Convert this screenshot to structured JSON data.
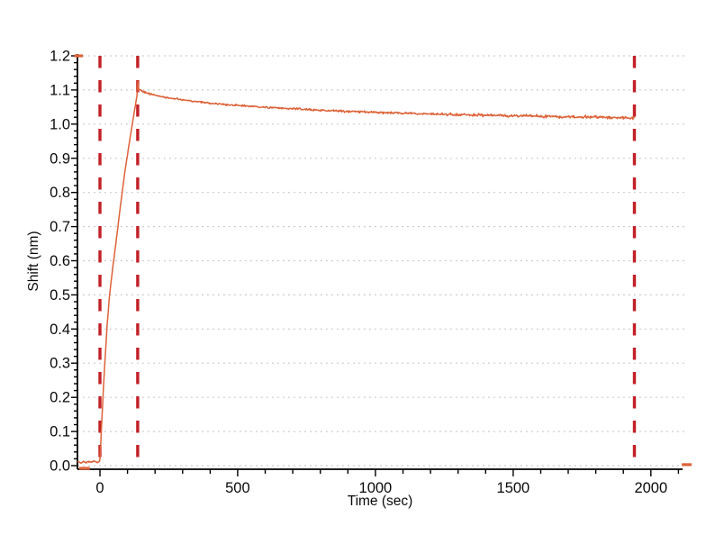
{
  "chart_data": {
    "type": "line",
    "title": "",
    "xlabel": "Time (sec)",
    "ylabel": "Shift (nm)",
    "xlim": [
      -81.7,
      2115
    ],
    "ylim": [
      0,
      1.2
    ],
    "x_major_ticks": [
      0,
      500,
      1000,
      1500,
      2000
    ],
    "x_tick_labels": [
      "0",
      "500",
      "1000",
      "1500",
      "2000"
    ],
    "x_minor_step": 100,
    "y_major_ticks": [
      0.0,
      0.1,
      0.2,
      0.3,
      0.4,
      0.5,
      0.6,
      0.7,
      0.8,
      0.9,
      1.0,
      1.1,
      1.2
    ],
    "y_tick_labels": [
      "0.0",
      "0.1",
      "0.2",
      "0.3",
      "0.4",
      "0.5",
      "0.6",
      "0.7",
      "0.8",
      "0.9",
      "1.0",
      "1.1",
      "1.2"
    ],
    "y_minor_step": 0.02,
    "grid": "horizontal-dotted",
    "legend": "none",
    "colors": {
      "trace": "#dd6238",
      "event_line": "#c22027",
      "grid": "#c6c6c6",
      "axis": "#000000",
      "text": "#0a0a0a",
      "background": "#ffffff"
    },
    "event_lines_x": [
      0,
      137,
      1940
    ],
    "series": [
      {
        "name": "sensorgram-trace",
        "color": "#dd6238",
        "noise_amplitude_base": 0.0028,
        "noise_amplitude_end": 0.0065,
        "points": [
          [
            -80,
            0.012
          ],
          [
            -70,
            0.008
          ],
          [
            -60,
            0.013
          ],
          [
            -50,
            0.009
          ],
          [
            -40,
            0.012
          ],
          [
            -30,
            0.01
          ],
          [
            -20,
            0.013
          ],
          [
            -10,
            0.009
          ],
          [
            -2,
            0.012
          ],
          [
            0,
            0.02
          ],
          [
            5,
            0.1
          ],
          [
            12,
            0.22
          ],
          [
            20,
            0.33
          ],
          [
            26,
            0.41
          ],
          [
            35,
            0.5
          ],
          [
            45,
            0.57
          ],
          [
            60,
            0.665
          ],
          [
            75,
            0.765
          ],
          [
            90,
            0.858
          ],
          [
            105,
            0.937
          ],
          [
            118,
            1.002
          ],
          [
            128,
            1.052
          ],
          [
            134,
            1.082
          ],
          [
            136,
            1.098
          ],
          [
            137.5,
            1.125
          ],
          [
            140,
            1.103
          ],
          [
            150,
            1.098
          ],
          [
            165,
            1.093
          ],
          [
            185,
            1.088
          ],
          [
            210,
            1.083
          ],
          [
            240,
            1.078
          ],
          [
            270,
            1.074
          ],
          [
            300,
            1.071
          ],
          [
            340,
            1.067
          ],
          [
            380,
            1.063
          ],
          [
            420,
            1.06
          ],
          [
            460,
            1.057
          ],
          [
            500,
            1.055
          ],
          [
            550,
            1.052
          ],
          [
            600,
            1.049
          ],
          [
            650,
            1.047
          ],
          [
            700,
            1.045
          ],
          [
            750,
            1.043
          ],
          [
            800,
            1.041
          ],
          [
            850,
            1.039
          ],
          [
            900,
            1.038
          ],
          [
            950,
            1.036
          ],
          [
            1000,
            1.035
          ],
          [
            1060,
            1.033
          ],
          [
            1120,
            1.032
          ],
          [
            1180,
            1.03
          ],
          [
            1240,
            1.029
          ],
          [
            1300,
            1.028
          ],
          [
            1360,
            1.027
          ],
          [
            1420,
            1.026
          ],
          [
            1480,
            1.025
          ],
          [
            1540,
            1.024
          ],
          [
            1600,
            1.023
          ],
          [
            1660,
            1.022
          ],
          [
            1720,
            1.021
          ],
          [
            1780,
            1.021
          ],
          [
            1840,
            1.02
          ],
          [
            1900,
            1.019
          ],
          [
            1940,
            1.018
          ]
        ]
      }
    ],
    "stray_marks": [
      {
        "name": "top-left-dash",
        "x1": -93,
        "x2": -62,
        "y": 1.2
      },
      {
        "name": "bottom-left-dash",
        "x1": -75,
        "x2": -37,
        "y": -0.008
      },
      {
        "name": "bottom-right-dash",
        "x1": 2112,
        "x2": 2148,
        "y": 0.003
      }
    ]
  }
}
